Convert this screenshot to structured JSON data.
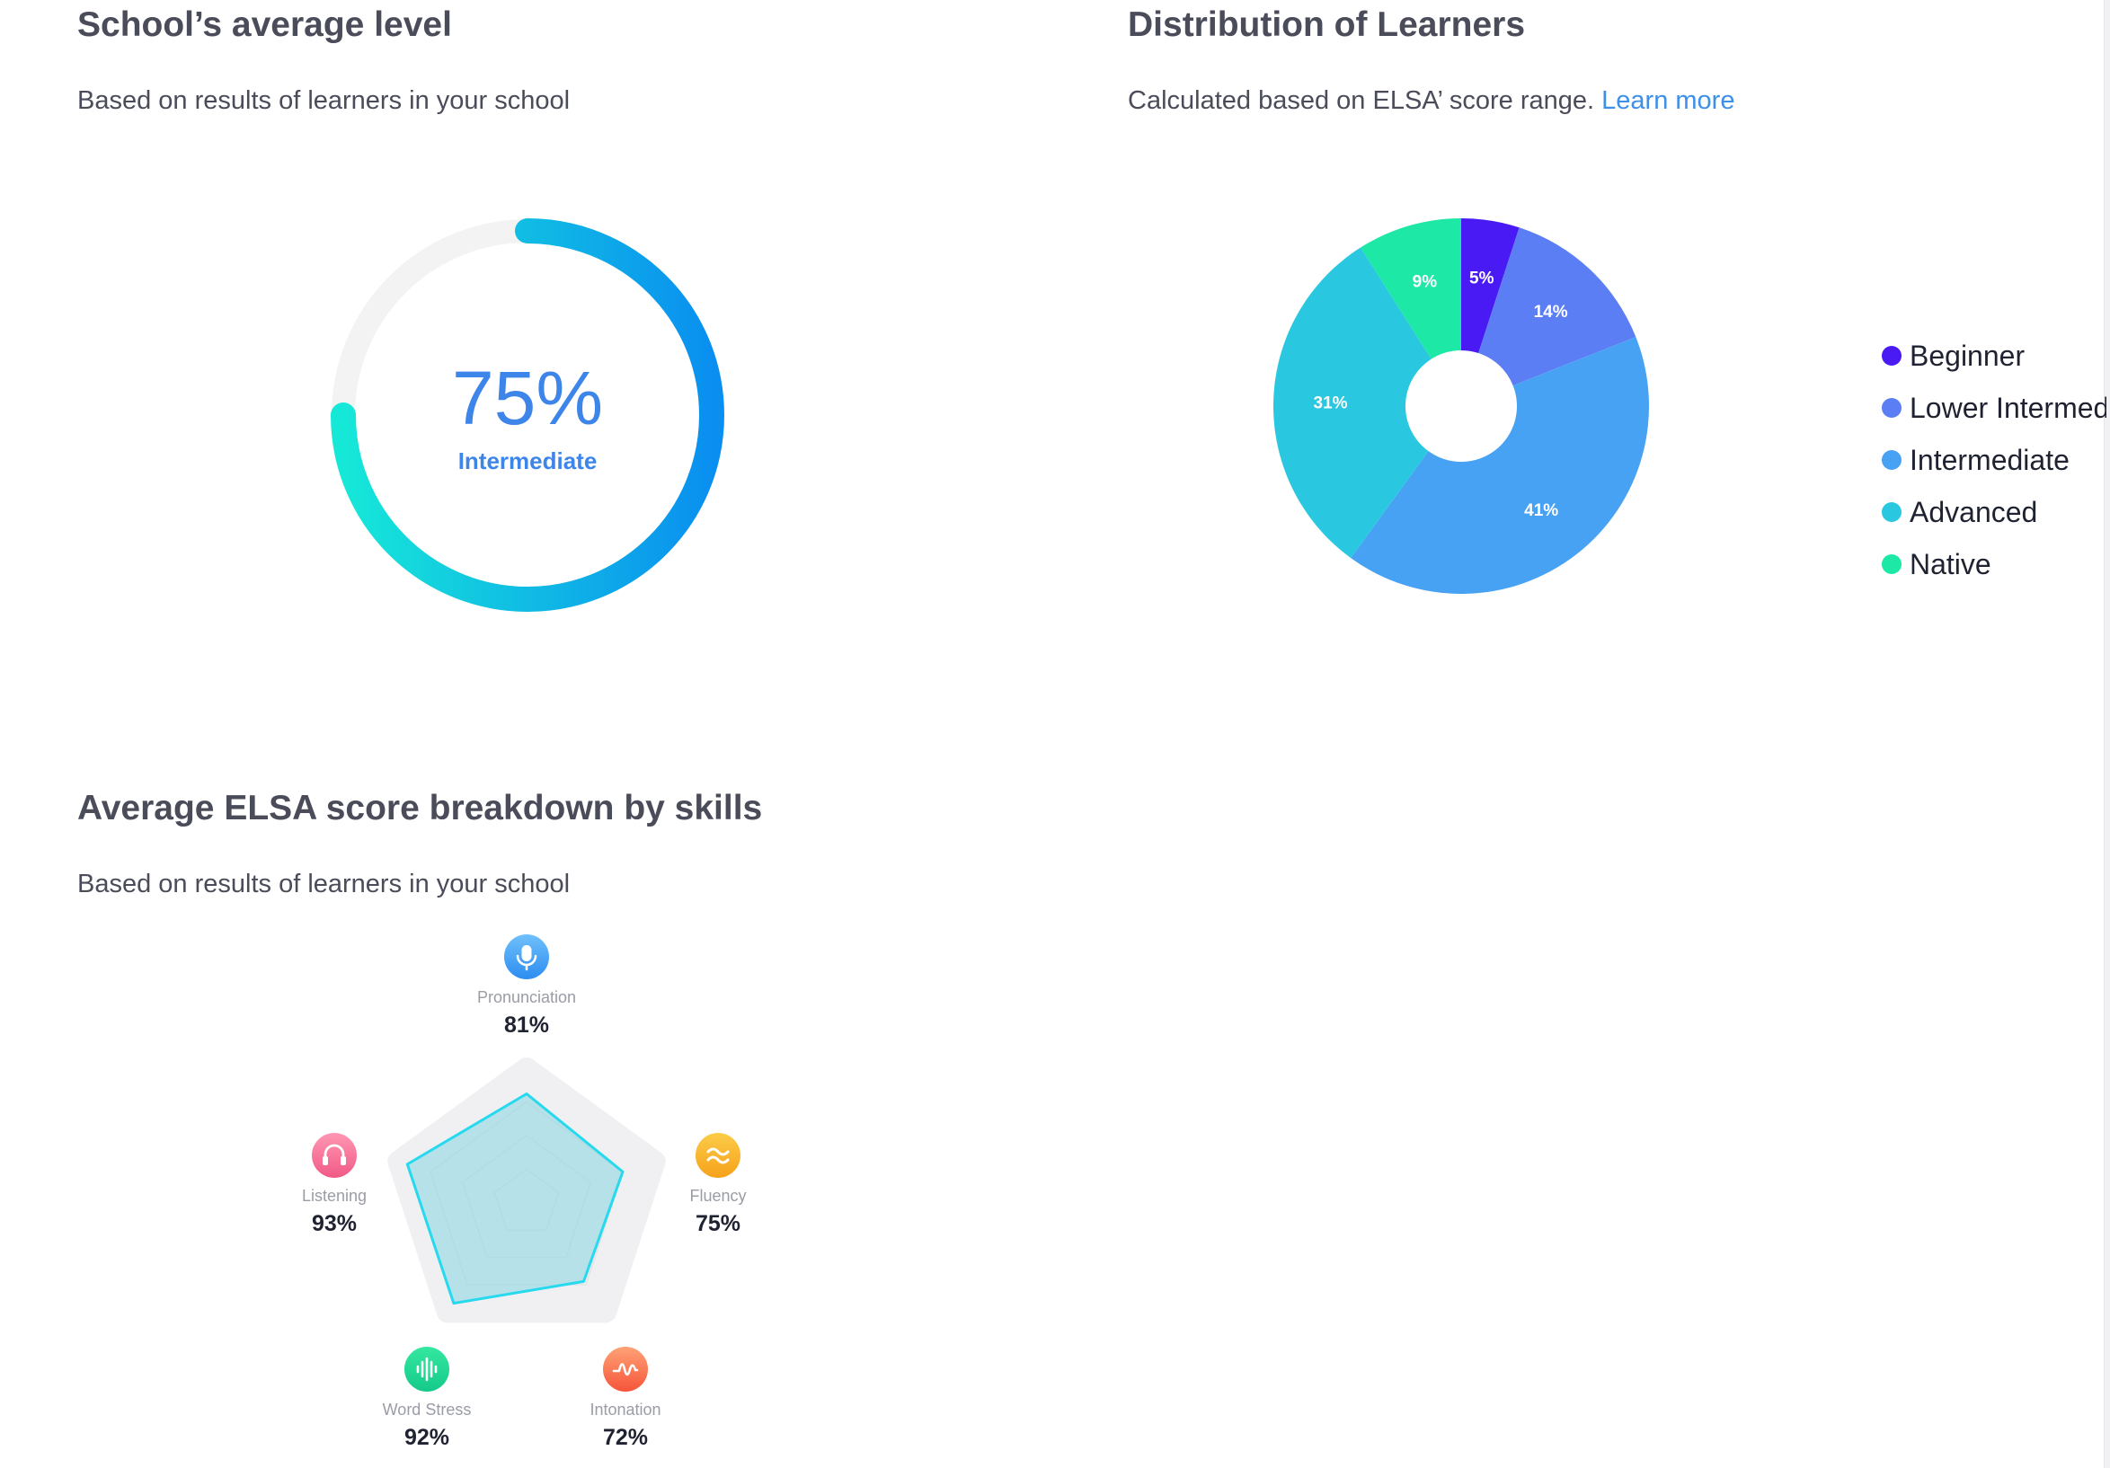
{
  "average_level": {
    "title": "School’s average level",
    "subtitle": "Based on results of learners in your school",
    "percent_label": "75%",
    "value_fraction": 0.75,
    "level_label": "Intermediate"
  },
  "distribution": {
    "title": "Distribution of Learners",
    "subtitle": "Calculated based on ELSA’ score range.",
    "learn_more": "Learn more",
    "chart_data": {
      "type": "pie",
      "categories": [
        "Beginner",
        "Lower Intermed",
        "Intermediate",
        "Advanced",
        "Native"
      ],
      "values": [
        5,
        14,
        41,
        31,
        9
      ],
      "labels": [
        "5%",
        "14%",
        "41%",
        "31%",
        "9%"
      ],
      "colors": [
        "#4a1af5",
        "#5b7ef5",
        "#48a2f4",
        "#29c8e0",
        "#1ee8a6"
      ],
      "legend": "right"
    }
  },
  "skills": {
    "title": "Average ELSA score breakdown by skills",
    "subtitle": "Based on results of learners in your school",
    "chart_data": {
      "type": "radar",
      "categories": [
        "Pronunciation",
        "Fluency",
        "Intonation",
        "Word Stress",
        "Listening"
      ],
      "values": [
        81,
        75,
        72,
        92,
        93
      ],
      "labels": [
        "81%",
        "75%",
        "72%",
        "92%",
        "93%"
      ],
      "icons": [
        "microphone-icon",
        "fluency-waves-icon",
        "intonation-wave-icon",
        "word-stress-bars-icon",
        "headphones-icon"
      ],
      "icon_colors": [
        [
          "#6fc0fb",
          "#2d8ef0"
        ],
        [
          "#fccc48",
          "#f6a11a"
        ],
        [
          "#ffa276",
          "#f5553a"
        ],
        [
          "#35e8a0",
          "#14c98a"
        ],
        [
          "#ff97b3",
          "#f15a86"
        ]
      ]
    }
  }
}
